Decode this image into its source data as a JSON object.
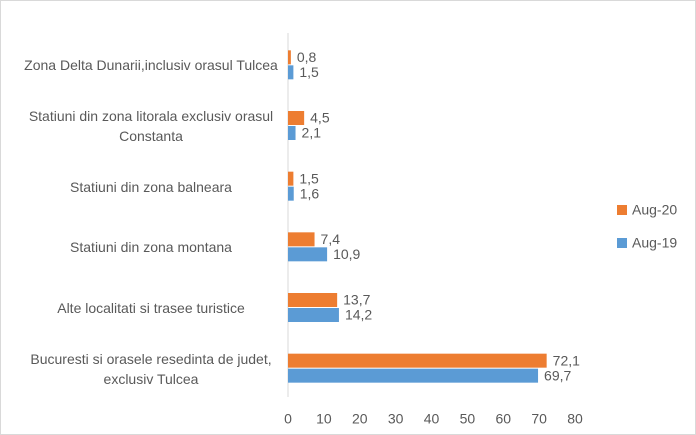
{
  "chart_data": {
    "type": "hbar",
    "categories": [
      "Zona Delta Dunarii,inclusiv  orasul Tulcea",
      "Statiuni din zona litorala exclusiv orasul Constanta",
      "Statiuni din zona balneara",
      "Statiuni din zona montana",
      "Alte localitati si trasee turistice",
      "Bucuresti si orasele resedinta de judet, exclusiv Tulcea"
    ],
    "series": [
      {
        "name": "Aug-20",
        "color": "#ED7D31",
        "values": [
          0.8,
          4.5,
          1.5,
          7.4,
          13.7,
          72.1
        ],
        "value_labels": [
          "0,8",
          "4,5",
          "1,5",
          "7,4",
          "13,7",
          "72,1"
        ]
      },
      {
        "name": "Aug-19",
        "color": "#5B9BD5",
        "values": [
          1.5,
          2.1,
          1.6,
          10.9,
          14.2,
          69.7
        ],
        "value_labels": [
          "1,5",
          "2,1",
          "1,6",
          "10,9",
          "14,2",
          "69,7"
        ]
      }
    ],
    "xlim": [
      0,
      80
    ],
    "xticks": [
      0,
      10,
      20,
      30,
      40,
      50,
      60,
      70,
      80
    ],
    "legend": "right"
  }
}
